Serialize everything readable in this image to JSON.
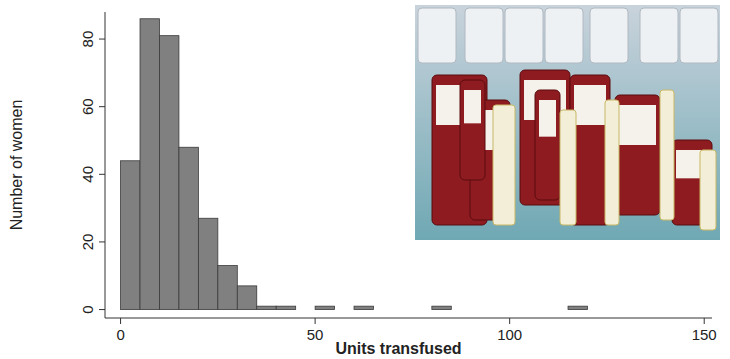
{
  "chart_data": {
    "type": "histogram",
    "x_label": "Units transfused",
    "y_label": "Number of women",
    "bins": [
      0,
      5,
      10,
      15,
      20,
      25,
      30,
      35,
      40,
      45,
      50,
      55,
      60,
      65,
      70,
      75,
      80,
      85,
      90,
      95,
      100,
      105,
      110,
      115,
      120
    ],
    "values": [
      44,
      86,
      81,
      48,
      27,
      13,
      7,
      1,
      1,
      0,
      1,
      0,
      1,
      0,
      0,
      0,
      1,
      0,
      0,
      0,
      0,
      0,
      0,
      1
    ],
    "color": "#808080",
    "xlim": [
      -4,
      152
    ],
    "xticks": [
      0,
      50,
      100,
      150
    ],
    "ylim": [
      -2.5,
      88
    ],
    "yticks": [
      0,
      20,
      40,
      60,
      80
    ],
    "grid": false
  }
}
